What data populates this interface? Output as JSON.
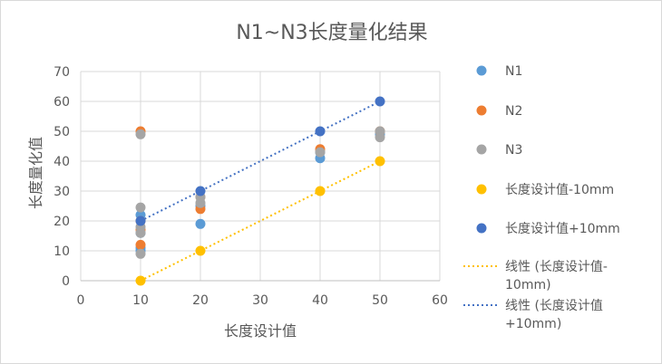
{
  "chart_data": {
    "type": "scatter",
    "title": "N1~N3长度量化结果",
    "xlabel": "长度设计值",
    "ylabel": "长度量化值",
    "xlim": [
      0,
      60
    ],
    "ylim": [
      0,
      70
    ],
    "xticks": [
      0,
      10,
      20,
      30,
      40,
      50,
      60
    ],
    "yticks": [
      0,
      10,
      20,
      30,
      40,
      50,
      60,
      70
    ],
    "grid": true,
    "legend_position": "right",
    "series": [
      {
        "name": "N1",
        "color": "#5B9BD5",
        "marker": "circle",
        "points": [
          [
            10,
            22
          ],
          [
            10,
            16
          ],
          [
            10,
            11
          ],
          [
            10,
            10
          ],
          [
            20,
            19
          ],
          [
            20,
            25
          ],
          [
            40,
            41
          ],
          [
            40,
            43
          ],
          [
            50,
            49
          ]
        ]
      },
      {
        "name": "N2",
        "color": "#ED7D31",
        "marker": "circle",
        "points": [
          [
            10,
            50
          ],
          [
            10,
            20
          ],
          [
            10,
            17
          ],
          [
            10,
            12
          ],
          [
            20,
            24
          ],
          [
            20,
            28
          ],
          [
            40,
            44
          ],
          [
            50,
            50
          ]
        ]
      },
      {
        "name": "N3",
        "color": "#A5A5A5",
        "marker": "circle",
        "points": [
          [
            10,
            49
          ],
          [
            10,
            24.5
          ],
          [
            10,
            18
          ],
          [
            10,
            16
          ],
          [
            10,
            9
          ],
          [
            20,
            26
          ],
          [
            20,
            28
          ],
          [
            40,
            43
          ],
          [
            50,
            48
          ],
          [
            50,
            50
          ]
        ]
      },
      {
        "name": "长度设计值-10mm",
        "color": "#FFC000",
        "marker": "circle",
        "points": [
          [
            10,
            0
          ],
          [
            20,
            10
          ],
          [
            40,
            30
          ],
          [
            50,
            40
          ]
        ]
      },
      {
        "name": "长度设计值+10mm",
        "color": "#4472C4",
        "marker": "circle",
        "points": [
          [
            10,
            20
          ],
          [
            20,
            30
          ],
          [
            40,
            50
          ],
          [
            50,
            60
          ]
        ]
      }
    ],
    "trendlines": [
      {
        "name": "线性 (长度设计值-10mm)",
        "color": "#FFC000",
        "style": "dotted",
        "from": [
          10,
          0
        ],
        "to": [
          50,
          40
        ]
      },
      {
        "name": "线性 (长度设计值+10mm)",
        "color": "#4472C4",
        "style": "dotted",
        "from": [
          10,
          20
        ],
        "to": [
          50,
          60
        ]
      }
    ],
    "legend": [
      {
        "kind": "marker",
        "label_lines": [
          "N1"
        ],
        "color": "#5B9BD5"
      },
      {
        "kind": "marker",
        "label_lines": [
          "N2"
        ],
        "color": "#ED7D31"
      },
      {
        "kind": "marker",
        "label_lines": [
          "N3"
        ],
        "color": "#A5A5A5"
      },
      {
        "kind": "marker",
        "label_lines": [
          "长度设计值-10mm"
        ],
        "color": "#FFC000"
      },
      {
        "kind": "marker",
        "label_lines": [
          "长度设计值+10mm"
        ],
        "color": "#4472C4"
      },
      {
        "kind": "line",
        "label_lines": [
          "线性 (长度设计值-",
          "10mm)"
        ],
        "color": "#FFC000"
      },
      {
        "kind": "line",
        "label_lines": [
          "线性 (长度设计值",
          "+10mm)"
        ],
        "color": "#4472C4"
      }
    ]
  }
}
